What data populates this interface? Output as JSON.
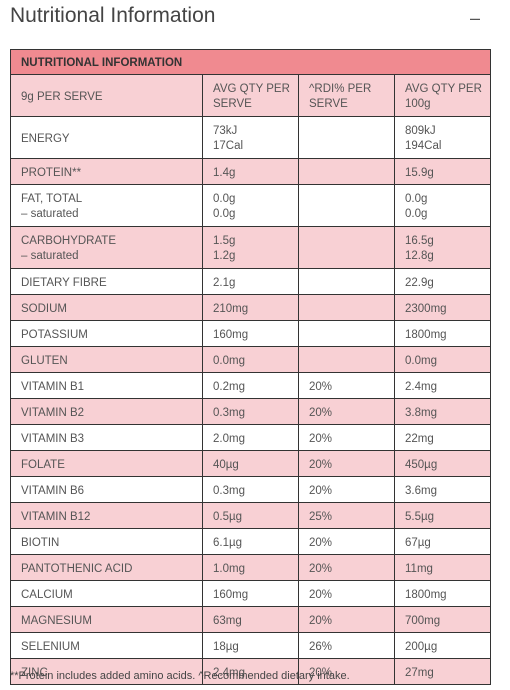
{
  "header": {
    "title": "Nutritional Information",
    "collapse_symbol": "–",
    "collapse_icon": "minus-icon"
  },
  "table": {
    "caption": "NUTRITIONAL INFORMATION",
    "columns": [
      "9g PER SERVE",
      "AVG QTY PER SERVE",
      "^RDI% PER SERVE",
      "AVG QTY PER 100g"
    ],
    "rows": [
      {
        "label": "ENERGY",
        "sub": "",
        "serve": "73kJ",
        "serve2": "17Cal",
        "rdi": "",
        "per100": "809kJ",
        "per100_2": "194Cal"
      },
      {
        "label": "PROTEIN**",
        "sub": "",
        "serve": "1.4g",
        "serve2": "",
        "rdi": "",
        "per100": "15.9g",
        "per100_2": ""
      },
      {
        "label": "FAT, TOTAL",
        "sub": "– saturated",
        "serve": "0.0g",
        "serve2": "0.0g",
        "rdi": "",
        "per100": "0.0g",
        "per100_2": "0.0g"
      },
      {
        "label": "CARBOHYDRATE",
        "sub": "– saturated",
        "serve": "1.5g",
        "serve2": "1.2g",
        "rdi": "",
        "per100": "16.5g",
        "per100_2": "12.8g"
      },
      {
        "label": "DIETARY FIBRE",
        "sub": "",
        "serve": "2.1g",
        "serve2": "",
        "rdi": "",
        "per100": "22.9g",
        "per100_2": ""
      },
      {
        "label": "SODIUM",
        "sub": "",
        "serve": "210mg",
        "serve2": "",
        "rdi": "",
        "per100": "2300mg",
        "per100_2": ""
      },
      {
        "label": "POTASSIUM",
        "sub": "",
        "serve": "160mg",
        "serve2": "",
        "rdi": "",
        "per100": "1800mg",
        "per100_2": ""
      },
      {
        "label": "GLUTEN",
        "sub": "",
        "serve": "0.0mg",
        "serve2": "",
        "rdi": "",
        "per100": "0.0mg",
        "per100_2": ""
      },
      {
        "label": "VITAMIN B1",
        "sub": "",
        "serve": "0.2mg",
        "serve2": "",
        "rdi": "20%",
        "per100": "2.4mg",
        "per100_2": ""
      },
      {
        "label": "VITAMIN B2",
        "sub": "",
        "serve": "0.3mg",
        "serve2": "",
        "rdi": "20%",
        "per100": "3.8mg",
        "per100_2": ""
      },
      {
        "label": "VITAMIN B3",
        "sub": "",
        "serve": "2.0mg",
        "serve2": "",
        "rdi": "20%",
        "per100": "22mg",
        "per100_2": ""
      },
      {
        "label": "FOLATE",
        "sub": "",
        "serve": "40µg",
        "serve2": "",
        "rdi": "20%",
        "per100": "450µg",
        "per100_2": ""
      },
      {
        "label": "VITAMIN B6",
        "sub": "",
        "serve": "0.3mg",
        "serve2": "",
        "rdi": "20%",
        "per100": "3.6mg",
        "per100_2": ""
      },
      {
        "label": "VITAMIN B12",
        "sub": "",
        "serve": "0.5µg",
        "serve2": "",
        "rdi": "25%",
        "per100": "5.5µg",
        "per100_2": ""
      },
      {
        "label": "BIOTIN",
        "sub": "",
        "serve": "6.1µg",
        "serve2": "",
        "rdi": "20%",
        "per100": "67µg",
        "per100_2": ""
      },
      {
        "label": "PANTOTHENIC ACID",
        "sub": "",
        "serve": "1.0mg",
        "serve2": "",
        "rdi": "20%",
        "per100": "11mg",
        "per100_2": ""
      },
      {
        "label": "CALCIUM",
        "sub": "",
        "serve": "160mg",
        "serve2": "",
        "rdi": "20%",
        "per100": "1800mg",
        "per100_2": ""
      },
      {
        "label": "MAGNESIUM",
        "sub": "",
        "serve": "63mg",
        "serve2": "",
        "rdi": "20%",
        "per100": "700mg",
        "per100_2": ""
      },
      {
        "label": "SELENIUM",
        "sub": "",
        "serve": "18µg",
        "serve2": "",
        "rdi": "26%",
        "per100": "200µg",
        "per100_2": ""
      },
      {
        "label": "ZINC",
        "sub": "",
        "serve": "2.4mg",
        "serve2": "",
        "rdi": "20%",
        "per100": "27mg",
        "per100_2": ""
      }
    ]
  },
  "footnote": "**Protein includes added amino acids. ^Recommended dietary intake.",
  "colors": {
    "caption_bg": "#f08a90",
    "pink_row": "#f8d0d4",
    "white_row": "#ffffff",
    "border": "#333333"
  }
}
